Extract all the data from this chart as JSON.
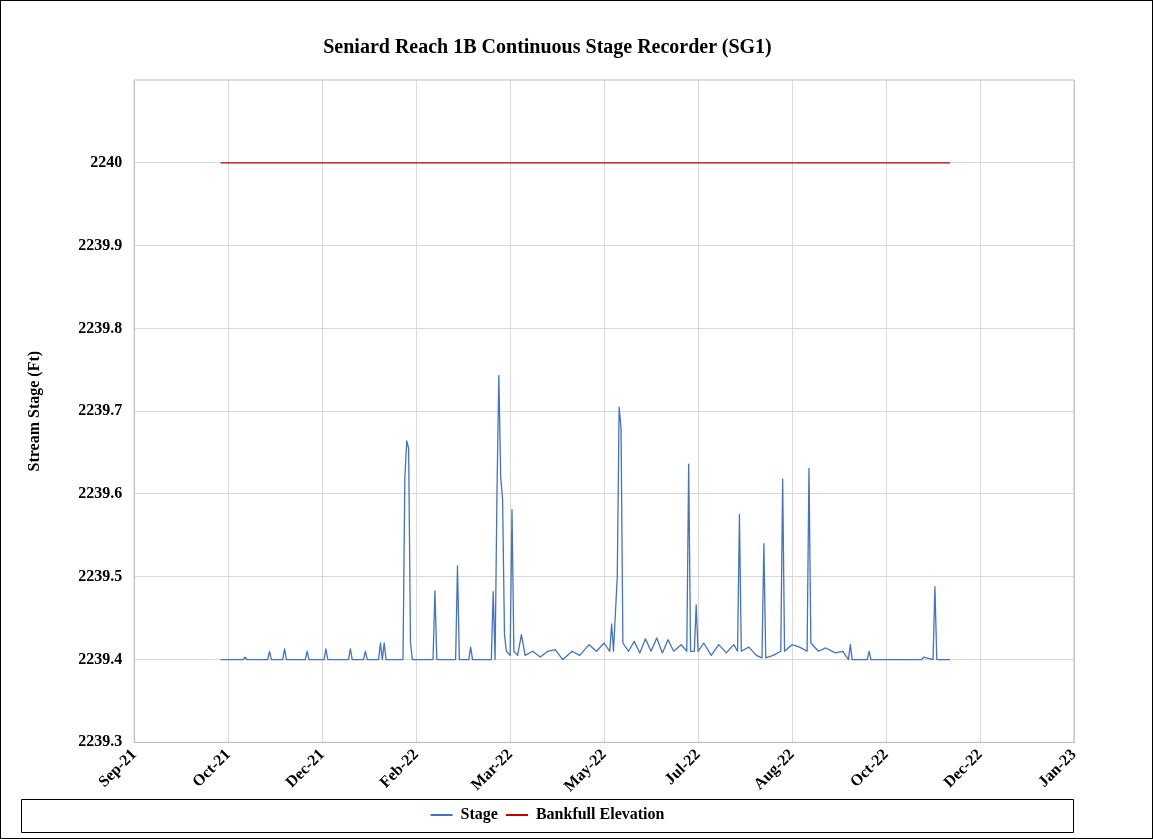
{
  "chart_data": {
    "type": "line",
    "title": "Seniard Reach 1B Continuous Stage Recorder (SG1)",
    "ylabel": "Stream Stage (Ft)",
    "xlim": [
      "2021-09-10",
      "2023-01-23"
    ],
    "xticks": [
      {
        "value": "2021-09-10",
        "label": "Sep-21"
      },
      {
        "value": "2021-10-30",
        "label": "Oct-21"
      },
      {
        "value": "2021-12-19",
        "label": "Dec-21"
      },
      {
        "value": "2022-02-07",
        "label": "Feb-22"
      },
      {
        "value": "2022-03-29",
        "label": "Mar-22"
      },
      {
        "value": "2022-05-18",
        "label": "May-22"
      },
      {
        "value": "2022-07-07",
        "label": "Jul-22"
      },
      {
        "value": "2022-08-26",
        "label": "Aug-22"
      },
      {
        "value": "2022-10-15",
        "label": "Oct-22"
      },
      {
        "value": "2022-12-04",
        "label": "Dec-22"
      },
      {
        "value": "2023-01-23",
        "label": "Jan-23"
      }
    ],
    "ylim": [
      2239.3,
      2240.1
    ],
    "yticks": [
      2239.3,
      2239.4,
      2239.5,
      2239.6,
      2239.7,
      2239.8,
      2239.9,
      2240
    ],
    "grid": true,
    "legend": "bottom",
    "marker": "none",
    "line_style": "solid",
    "series": [
      {
        "name": "Stage",
        "color": "#4472c4",
        "x": [
          "2021-10-26",
          "2021-11-07",
          "2021-11-08",
          "2021-11-09",
          "2021-11-20",
          "2021-11-21",
          "2021-11-22",
          "2021-11-28",
          "2021-11-29",
          "2021-11-30",
          "2021-12-10",
          "2021-12-11",
          "2021-12-12",
          "2021-12-20",
          "2021-12-21",
          "2021-12-22",
          "2022-01-02",
          "2022-01-03",
          "2022-01-04",
          "2022-01-10",
          "2022-01-11",
          "2022-01-12",
          "2022-01-18",
          "2022-01-19",
          "2022-01-20",
          "2022-01-21",
          "2022-01-22",
          "2022-01-31",
          "2022-02-01",
          "2022-02-02",
          "2022-02-03",
          "2022-02-04",
          "2022-02-05",
          "2022-02-16",
          "2022-02-17",
          "2022-02-18",
          "2022-02-28",
          "2022-03-01",
          "2022-03-02",
          "2022-03-07",
          "2022-03-08",
          "2022-03-09",
          "2022-03-19",
          "2022-03-20",
          "2022-03-21",
          "2022-03-22",
          "2022-03-23",
          "2022-03-24",
          "2022-03-25",
          "2022-03-26",
          "2022-03-27",
          "2022-03-29",
          "2022-03-30",
          "2022-03-31",
          "2022-04-02",
          "2022-04-04",
          "2022-04-06",
          "2022-04-10",
          "2022-04-14",
          "2022-04-18",
          "2022-04-22",
          "2022-04-26",
          "2022-05-01",
          "2022-05-05",
          "2022-05-10",
          "2022-05-14",
          "2022-05-18",
          "2022-05-21",
          "2022-05-22",
          "2022-05-23",
          "2022-05-25",
          "2022-05-26",
          "2022-05-27",
          "2022-05-28",
          "2022-05-31",
          "2022-06-03",
          "2022-06-06",
          "2022-06-09",
          "2022-06-12",
          "2022-06-15",
          "2022-06-18",
          "2022-06-21",
          "2022-06-24",
          "2022-06-28",
          "2022-07-01",
          "2022-07-02",
          "2022-07-03",
          "2022-07-05",
          "2022-07-06",
          "2022-07-07",
          "2022-07-10",
          "2022-07-14",
          "2022-07-18",
          "2022-07-22",
          "2022-07-26",
          "2022-07-28",
          "2022-07-29",
          "2022-07-30",
          "2022-08-03",
          "2022-08-07",
          "2022-08-10",
          "2022-08-11",
          "2022-08-12",
          "2022-08-16",
          "2022-08-20",
          "2022-08-21",
          "2022-08-22",
          "2022-08-26",
          "2022-08-30",
          "2022-09-03",
          "2022-09-04",
          "2022-09-05",
          "2022-09-09",
          "2022-09-13",
          "2022-09-18",
          "2022-09-22",
          "2022-09-25",
          "2022-09-26",
          "2022-09-27",
          "2022-10-05",
          "2022-10-06",
          "2022-10-07",
          "2022-11-03",
          "2022-11-04",
          "2022-11-09",
          "2022-11-10",
          "2022-11-11",
          "2022-11-18"
        ],
        "values": [
          2239.4,
          2239.4,
          2239.403,
          2239.4,
          2239.4,
          2239.41,
          2239.4,
          2239.4,
          2239.413,
          2239.4,
          2239.4,
          2239.41,
          2239.4,
          2239.4,
          2239.413,
          2239.4,
          2239.4,
          2239.413,
          2239.4,
          2239.4,
          2239.41,
          2239.4,
          2239.4,
          2239.42,
          2239.4,
          2239.42,
          2239.4,
          2239.4,
          2239.62,
          2239.664,
          2239.655,
          2239.42,
          2239.4,
          2239.4,
          2239.483,
          2239.4,
          2239.4,
          2239.513,
          2239.4,
          2239.4,
          2239.415,
          2239.4,
          2239.4,
          2239.482,
          2239.4,
          2239.6,
          2239.743,
          2239.62,
          2239.593,
          2239.43,
          2239.41,
          2239.405,
          2239.581,
          2239.41,
          2239.405,
          2239.43,
          2239.405,
          2239.41,
          2239.403,
          2239.41,
          2239.412,
          2239.4,
          2239.41,
          2239.405,
          2239.418,
          2239.41,
          2239.42,
          2239.41,
          2239.443,
          2239.41,
          2239.5,
          2239.705,
          2239.68,
          2239.42,
          2239.41,
          2239.422,
          2239.408,
          2239.425,
          2239.41,
          2239.426,
          2239.408,
          2239.424,
          2239.41,
          2239.418,
          2239.41,
          2239.636,
          2239.41,
          2239.41,
          2239.466,
          2239.41,
          2239.42,
          2239.405,
          2239.418,
          2239.408,
          2239.418,
          2239.41,
          2239.575,
          2239.41,
          2239.415,
          2239.405,
          2239.402,
          2239.54,
          2239.402,
          2239.405,
          2239.41,
          2239.618,
          2239.41,
          2239.418,
          2239.415,
          2239.41,
          2239.631,
          2239.42,
          2239.41,
          2239.414,
          2239.408,
          2239.41,
          2239.4,
          2239.418,
          2239.4,
          2239.4,
          2239.41,
          2239.4,
          2239.4,
          2239.403,
          2239.4,
          2239.488,
          2239.4,
          2239.4
        ]
      },
      {
        "name": "Bankfull Elevation",
        "color": "#c00000",
        "x": [
          "2021-10-26",
          "2022-11-18"
        ],
        "values": [
          2240,
          2240
        ]
      }
    ]
  }
}
